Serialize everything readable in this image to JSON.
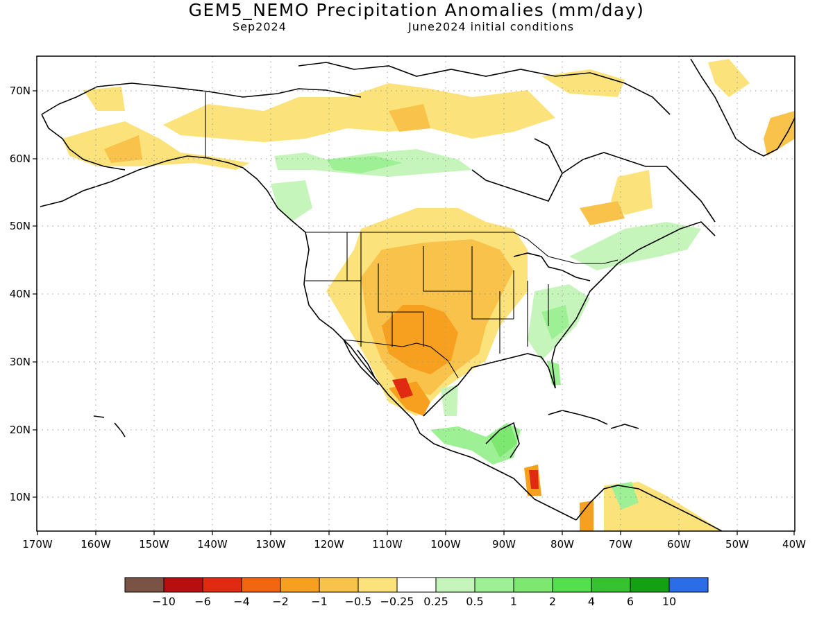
{
  "header": {
    "title": "GEM5_NEMO Precipitation Anomalies (mm/day)",
    "valid_month": "Sep2024",
    "init": "June2024 initial conditions"
  },
  "map": {
    "lat_ticks": [
      "70N",
      "60N",
      "50N",
      "40N",
      "30N",
      "20N",
      "10N"
    ],
    "lon_ticks": [
      "170W",
      "160W",
      "150W",
      "140W",
      "130W",
      "120W",
      "110W",
      "100W",
      "90W",
      "80W",
      "70W",
      "60W",
      "50W",
      "40W"
    ]
  },
  "colorbar": {
    "colors": [
      "#7a5345",
      "#b70f0f",
      "#e02a12",
      "#f36610",
      "#f7a020",
      "#f9c24a",
      "#fbe27a",
      "#ffffff",
      "#c6f5bc",
      "#9df094",
      "#7ce86f",
      "#54df4e",
      "#36c32f",
      "#13a012",
      "#2b6de6"
    ],
    "labels": [
      "−10",
      "−6",
      "−4",
      "−2",
      "−1",
      "−0.5",
      "−0.25",
      "0.25",
      "0.5",
      "1",
      "2",
      "4",
      "6",
      "10"
    ]
  },
  "colors": {
    "dry_light": "#fbe27a",
    "dry_mid": "#f9c24a",
    "dry_strong": "#f7a020",
    "dry_very": "#f36610",
    "dry_extreme": "#e02a12",
    "wet_light": "#c6f5bc",
    "wet_mid": "#9df094",
    "wet_strong": "#7ce86f"
  }
}
